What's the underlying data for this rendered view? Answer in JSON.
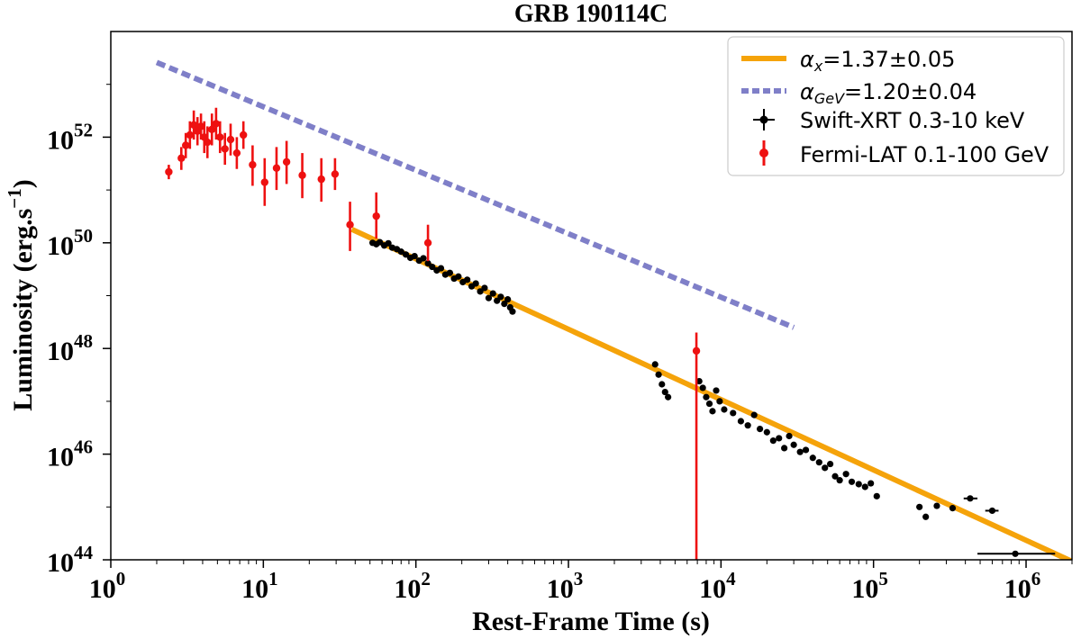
{
  "chart_data": {
    "type": "scatter",
    "title": "GRB 190114C",
    "xlabel": "Rest-Frame Time (s)",
    "ylabel": "Luminosity (erg.s",
    "ylabel_sup": "−1",
    "ylabel_close": ")",
    "xscale": "log",
    "yscale": "log",
    "xlim": [
      1,
      2000000
    ],
    "ylim": [
      1e+44,
      1e+54
    ],
    "grid": false,
    "legend_position": "top-right",
    "x_ticks": [
      {
        "value": 1,
        "base": "10",
        "exp": "0"
      },
      {
        "value": 10,
        "base": "10",
        "exp": "1"
      },
      {
        "value": 100,
        "base": "10",
        "exp": "2"
      },
      {
        "value": 1000,
        "base": "10",
        "exp": "3"
      },
      {
        "value": 10000,
        "base": "10",
        "exp": "4"
      },
      {
        "value": 100000,
        "base": "10",
        "exp": "5"
      },
      {
        "value": 1000000,
        "base": "10",
        "exp": "6"
      }
    ],
    "y_ticks": [
      {
        "value": 1e+44,
        "base": "10",
        "exp": "44"
      },
      {
        "value": 1e+46,
        "base": "10",
        "exp": "46"
      },
      {
        "value": 1e+48,
        "base": "10",
        "exp": "48"
      },
      {
        "value": 1e+50,
        "base": "10",
        "exp": "50"
      },
      {
        "value": 1e+52,
        "base": "10",
        "exp": "52"
      }
    ],
    "fit_lines": [
      {
        "name": "alpha_x",
        "legend_symbol": "α",
        "legend_sub": "x",
        "legend_value": "=1.37±0.05",
        "color": "#f5a30a",
        "style": "solid",
        "x": [
          38,
          2000000
        ],
        "y": [
          1.8e+50,
          9.3e+43
        ]
      },
      {
        "name": "alpha_GeV",
        "legend_symbol": "α",
        "legend_sub": "GeV",
        "legend_value": "=1.20±0.04",
        "color": "#7f7fc8",
        "style": "dashed",
        "x": [
          2,
          30000
        ],
        "y": [
          2.6e+53,
          2.5e+48
        ]
      }
    ],
    "series": [
      {
        "name": "Swift-XRT 0.3-10 keV",
        "color": "#000000",
        "marker": "circle",
        "points": [
          [
            52,
            1e+50
          ],
          [
            55,
            9.4e+49
          ],
          [
            58,
            1.03e+50
          ],
          [
            62,
            8.9e+49
          ],
          [
            66,
            9.8e+49
          ],
          [
            70,
            8.1e+49
          ],
          [
            75,
            7.6e+49
          ],
          [
            80,
            6.8e+49
          ],
          [
            86,
            6e+49
          ],
          [
            92,
            5.2e+49
          ],
          [
            98,
            5.6e+49
          ],
          [
            105,
            4.6e+49
          ],
          [
            112,
            5.1e+49
          ],
          [
            120,
            4.1e+49
          ],
          [
            128,
            3.5e+49
          ],
          [
            137,
            3e+49
          ],
          [
            146,
            3.3e+49
          ],
          [
            156,
            2.5e+49
          ],
          [
            167,
            2.7e+49
          ],
          [
            178,
            2.1e+49
          ],
          [
            190,
            2.3e+49
          ],
          [
            203,
            1.8e+49
          ],
          [
            217,
            2e+49
          ],
          [
            232,
            1.5e+49
          ],
          [
            247,
            1.7e+49
          ],
          [
            264,
            1.2e+49
          ],
          [
            282,
            1.4e+49
          ],
          [
            300,
            9e+48
          ],
          [
            320,
            1.1e+49
          ],
          [
            340,
            8e+48
          ],
          [
            360,
            9.5e+48
          ],
          [
            380,
            7e+48
          ],
          [
            400,
            8.5e+48
          ],
          [
            415,
            6e+48
          ],
          [
            430,
            5e+48
          ],
          [
            3700,
            5e+47
          ],
          [
            3900,
            3.2e+47
          ],
          [
            4100,
            2.1e+47
          ],
          [
            4300,
            1.5e+47
          ],
          [
            4500,
            1.2e+47
          ],
          [
            7200,
            2.4e+47
          ],
          [
            7600,
            1.8e+47
          ],
          [
            8000,
            1.2e+47
          ],
          [
            8400,
            9e+46
          ],
          [
            8800,
            6.5e+46
          ],
          [
            9300,
            1.6e+47
          ],
          [
            9800,
            1e+47
          ],
          [
            10500,
            7e+46
          ],
          [
            12000,
            6e+46
          ],
          [
            13500,
            4.2e+46
          ],
          [
            15000,
            3.5e+46
          ],
          [
            16500,
            5.5e+46
          ],
          [
            18000,
            3e+46
          ],
          [
            20000,
            2.6e+46
          ],
          [
            22000,
            1.8e+46
          ],
          [
            24000,
            2e+46
          ],
          [
            26000,
            1.3e+46
          ],
          [
            28000,
            2.2e+46
          ],
          [
            30000,
            1.5e+46
          ],
          [
            33000,
            1.1e+46
          ],
          [
            36000,
            1.2e+46
          ],
          [
            40000,
            8.5e+45
          ],
          [
            44000,
            7e+45
          ],
          [
            48000,
            5.5e+45
          ],
          [
            52000,
            6.5e+45
          ],
          [
            56000,
            3.8e+45
          ],
          [
            60000,
            3.2e+45
          ],
          [
            66000,
            4.2e+45
          ],
          [
            72000,
            3e+45
          ],
          [
            80000,
            2.7e+45
          ],
          [
            88000,
            2.4e+45
          ],
          [
            96000,
            2.8e+45
          ],
          [
            105000,
            1.6e+45
          ],
          [
            200000,
            1e+45
          ],
          [
            220000,
            6.5e+44
          ],
          [
            260000,
            1.05e+45
          ],
          [
            330000,
            9.5e+44
          ],
          [
            430000,
            1.45e+45
          ],
          [
            600000,
            8.5e+44
          ],
          [
            850000,
            1.3e+44
          ]
        ]
      },
      {
        "name": "Fermi-LAT 0.1-100 GeV",
        "color": "#ee1111",
        "marker": "circle",
        "points": [
          {
            "x": 2.4,
            "y": 2.2e+51,
            "lo": 1.6e+51,
            "hi": 3e+51
          },
          {
            "x": 2.9,
            "y": 4e+51,
            "lo": 2.4e+51,
            "hi": 6.5e+51
          },
          {
            "x": 3.1,
            "y": 7e+51,
            "lo": 4e+51,
            "hi": 1.2e+52
          },
          {
            "x": 3.3,
            "y": 1.1e+52,
            "lo": 6e+51,
            "hi": 2e+52
          },
          {
            "x": 3.5,
            "y": 1.7e+52,
            "lo": 9e+51,
            "hi": 3.2e+52
          },
          {
            "x": 3.7,
            "y": 1.3e+52,
            "lo": 7e+51,
            "hi": 2.4e+52
          },
          {
            "x": 3.9,
            "y": 1.6e+52,
            "lo": 9e+51,
            "hi": 2.8e+52
          },
          {
            "x": 4.1,
            "y": 1e+52,
            "lo": 5e+51,
            "hi": 2e+52
          },
          {
            "x": 4.3,
            "y": 8e+51,
            "lo": 4e+51,
            "hi": 1.6e+52
          },
          {
            "x": 4.6,
            "y": 1.4e+52,
            "lo": 7e+51,
            "hi": 2.8e+52
          },
          {
            "x": 4.9,
            "y": 1.8e+52,
            "lo": 9e+51,
            "hi": 3.6e+52
          },
          {
            "x": 5.2,
            "y": 1e+52,
            "lo": 5e+51,
            "hi": 2e+52
          },
          {
            "x": 5.6,
            "y": 6e+51,
            "lo": 3e+51,
            "hi": 1.2e+52
          },
          {
            "x": 6.1,
            "y": 9e+51,
            "lo": 4.5e+51,
            "hi": 1.8e+52
          },
          {
            "x": 6.7,
            "y": 5e+51,
            "lo": 2.5e+51,
            "hi": 1e+52
          },
          {
            "x": 7.4,
            "y": 1.1e+52,
            "lo": 6e+51,
            "hi": 2e+52
          },
          {
            "x": 8.5,
            "y": 3e+51,
            "lo": 1.2e+51,
            "hi": 7e+51
          },
          {
            "x": 10.2,
            "y": 1.4e+51,
            "lo": 5e+50,
            "hi": 4e+51
          },
          {
            "x": 12.2,
            "y": 2.6e+51,
            "lo": 1e+51,
            "hi": 6.5e+51
          },
          {
            "x": 14.2,
            "y": 3.4e+51,
            "lo": 1.3e+51,
            "hi": 8.5e+51
          },
          {
            "x": 18.0,
            "y": 1.9e+51,
            "lo": 7e+50,
            "hi": 5e+51
          },
          {
            "x": 24.0,
            "y": 1.6e+51,
            "lo": 6e+50,
            "hi": 4e+51
          },
          {
            "x": 29.5,
            "y": 2e+51,
            "lo": 1e+51,
            "hi": 4e+51
          },
          {
            "x": 37.0,
            "y": 2.2e+50,
            "lo": 7e+49,
            "hi": 6e+50
          },
          {
            "x": 55.0,
            "y": 3.2e+50,
            "lo": 1.2e+50,
            "hi": 9e+50
          },
          {
            "x": 120.0,
            "y": 1e+50,
            "lo": 4.5e+49,
            "hi": 2.2e+50
          },
          {
            "x": 6900,
            "y": 9e+47,
            "lo": 1e+44,
            "hi": 2e+48
          }
        ]
      }
    ],
    "x_errorbars": [
      {
        "x": 430000,
        "y": 1.45e+45,
        "xlo": 390000,
        "xhi": 480000
      },
      {
        "x": 600000,
        "y": 8.5e+44,
        "xlo": 540000,
        "xhi": 660000
      },
      {
        "x": 850000,
        "y": 1.3e+44,
        "xlo": 480000,
        "xhi": 1550000
      }
    ]
  }
}
